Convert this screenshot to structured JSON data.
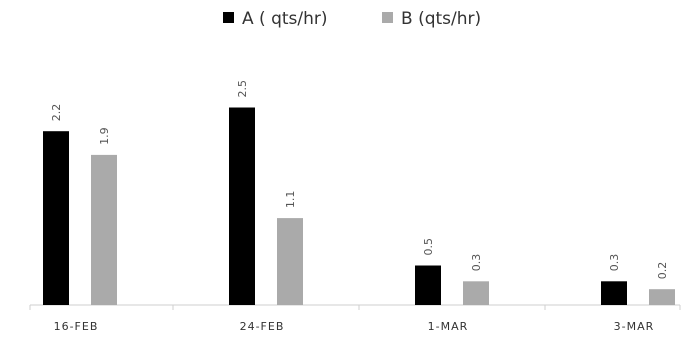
{
  "chart_data": {
    "type": "bar",
    "title": "",
    "xlabel": "",
    "ylabel": "",
    "categories": [
      "16-FEB",
      "24-FEB",
      "1-MAR",
      "3-MAR"
    ],
    "series": [
      {
        "name": "A ( qts/hr)",
        "values": [
          2.2,
          2.5,
          0.5,
          0.3
        ],
        "labels": [
          "2.2",
          "2.5",
          "0.5",
          "0.3"
        ],
        "color": "#000000"
      },
      {
        "name": "B (qts/hr)",
        "values": [
          1.9,
          1.1,
          0.3,
          0.2
        ],
        "labels": [
          "1.9",
          "1.1",
          "0.3",
          "0.2"
        ],
        "color": "#aaaaaa"
      }
    ],
    "ylim": [
      0,
      2.5
    ],
    "grid": false,
    "legend": "top-center",
    "data_labels": true,
    "value_label_rotation": "vertical"
  }
}
